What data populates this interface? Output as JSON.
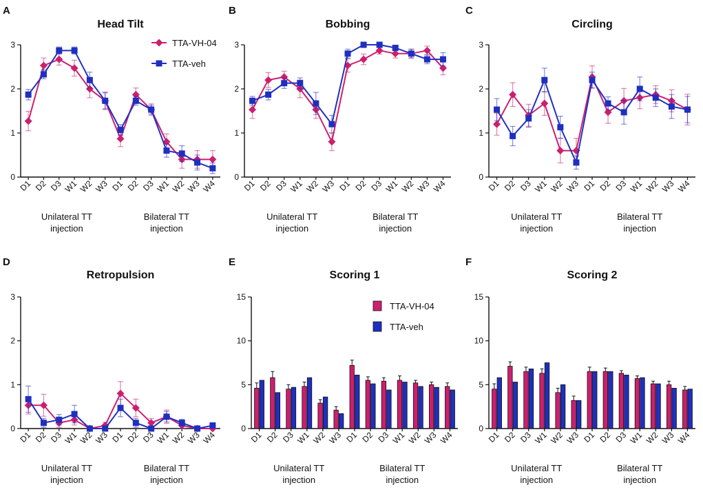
{
  "colors": {
    "vh": "#cc1f6e",
    "veh": "#1f2fbf",
    "axis": "#111111"
  },
  "chart_data": [
    {
      "panel": "A",
      "type": "line",
      "title": "Head Tilt",
      "categories": [
        "D1",
        "D2",
        "D3",
        "W1",
        "W2",
        "W3",
        "D1",
        "D2",
        "D3",
        "W1",
        "W2",
        "W3",
        "W4"
      ],
      "groups": [
        {
          "label": [
            "Unilateral TT",
            "injection"
          ],
          "from": 0,
          "to": 5
        },
        {
          "label": [
            "Bilateral TT",
            "injection"
          ],
          "from": 6,
          "to": 12
        }
      ],
      "ylim": [
        0,
        3
      ],
      "yticks": [
        0,
        1,
        2,
        3
      ],
      "legend": {
        "position": "top-right",
        "marker": "line"
      },
      "series": [
        {
          "name": "TTA-VH-04",
          "color": "#cc1f6e",
          "marker": "diamond",
          "values": [
            1.27,
            2.53,
            2.67,
            2.47,
            2.0,
            1.73,
            0.87,
            1.87,
            1.53,
            0.8,
            0.4,
            0.4,
            0.4
          ],
          "errors": [
            0.22,
            0.17,
            0.13,
            0.18,
            0.2,
            0.2,
            0.18,
            0.15,
            0.13,
            0.18,
            0.2,
            0.2,
            0.2
          ]
        },
        {
          "name": "TTA-veh",
          "color": "#1f2fbf",
          "marker": "square",
          "values": [
            1.87,
            2.33,
            2.87,
            2.87,
            2.2,
            1.73,
            1.07,
            1.73,
            1.53,
            0.6,
            0.53,
            0.33,
            0.2
          ],
          "errors": [
            0.12,
            0.1,
            0.08,
            0.08,
            0.18,
            0.18,
            0.12,
            0.1,
            0.1,
            0.15,
            0.18,
            0.17,
            0.12
          ]
        }
      ]
    },
    {
      "panel": "B",
      "type": "line",
      "title": "Bobbing",
      "categories": [
        "D1",
        "D2",
        "D3",
        "W1",
        "W2",
        "W3",
        "D1",
        "D2",
        "D3",
        "W1",
        "W2",
        "W3",
        "W4"
      ],
      "groups": [
        {
          "label": [
            "Unilateral TT",
            "injection"
          ],
          "from": 0,
          "to": 5
        },
        {
          "label": [
            "Bilateral TT",
            "injection"
          ],
          "from": 6,
          "to": 12
        }
      ],
      "ylim": [
        0,
        3
      ],
      "yticks": [
        0,
        1,
        2,
        3
      ],
      "series": [
        {
          "name": "TTA-VH-04",
          "color": "#cc1f6e",
          "marker": "diamond",
          "values": [
            1.53,
            2.2,
            2.27,
            2.0,
            1.53,
            0.8,
            2.53,
            2.67,
            2.87,
            2.8,
            2.8,
            2.87,
            2.47
          ],
          "errors": [
            0.2,
            0.17,
            0.13,
            0.2,
            0.2,
            0.2,
            0.15,
            0.12,
            0.08,
            0.1,
            0.1,
            0.1,
            0.15
          ]
        },
        {
          "name": "TTA-veh",
          "color": "#1f2fbf",
          "marker": "square",
          "values": [
            1.73,
            1.87,
            2.13,
            2.13,
            1.67,
            1.2,
            2.8,
            3.0,
            3.0,
            2.93,
            2.8,
            2.67,
            2.67
          ],
          "errors": [
            0.1,
            0.12,
            0.12,
            0.12,
            0.25,
            0.2,
            0.1,
            0.0,
            0.0,
            0.06,
            0.1,
            0.1,
            0.15
          ]
        }
      ]
    },
    {
      "panel": "C",
      "type": "line",
      "title": "Circling",
      "categories": [
        "D1",
        "D2",
        "D3",
        "W1",
        "W2",
        "W3",
        "D1",
        "D2",
        "D3",
        "W1",
        "W2",
        "W3",
        "W4"
      ],
      "groups": [
        {
          "label": [
            "Unilateral TT",
            "injection"
          ],
          "from": 0,
          "to": 5
        },
        {
          "label": [
            "Bilateral TT",
            "injection"
          ],
          "from": 6,
          "to": 12
        }
      ],
      "ylim": [
        0,
        3
      ],
      "yticks": [
        0,
        1,
        2,
        3
      ],
      "series": [
        {
          "name": "TTA-VH-04",
          "color": "#cc1f6e",
          "marker": "diamond",
          "values": [
            1.2,
            1.87,
            1.4,
            1.67,
            0.6,
            0.6,
            2.27,
            1.47,
            1.73,
            1.8,
            1.87,
            1.73,
            1.53
          ],
          "errors": [
            0.25,
            0.27,
            0.25,
            0.27,
            0.28,
            0.28,
            0.25,
            0.25,
            0.28,
            0.25,
            0.2,
            0.25,
            0.35
          ]
        },
        {
          "name": "TTA-veh",
          "color": "#1f2fbf",
          "marker": "square",
          "values": [
            1.53,
            0.93,
            1.33,
            2.2,
            1.13,
            0.33,
            2.2,
            1.67,
            1.47,
            2.0,
            1.8,
            1.6,
            1.53
          ],
          "errors": [
            0.25,
            0.22,
            0.2,
            0.27,
            0.25,
            0.15,
            0.18,
            0.15,
            0.27,
            0.27,
            0.2,
            0.27,
            0.3
          ]
        }
      ]
    },
    {
      "panel": "D",
      "type": "line",
      "title": "Retropulsion",
      "categories": [
        "D1",
        "D2",
        "D3",
        "W1",
        "W2",
        "W3",
        "D1",
        "D2",
        "D3",
        "W1",
        "W2",
        "W3",
        "W4"
      ],
      "groups": [
        {
          "label": [
            "Unilateral TT",
            "injection"
          ],
          "from": 0,
          "to": 5
        },
        {
          "label": [
            "Bilateral TT",
            "injection"
          ],
          "from": 6,
          "to": 12
        }
      ],
      "ylim": [
        0,
        3
      ],
      "yticks": [
        0,
        1,
        2,
        3
      ],
      "series": [
        {
          "name": "TTA-VH-04",
          "color": "#cc1f6e",
          "marker": "diamond",
          "values": [
            0.53,
            0.53,
            0.13,
            0.2,
            0.0,
            0.07,
            0.8,
            0.47,
            0.13,
            0.27,
            0.07,
            0.0,
            0.0
          ],
          "errors": [
            0.2,
            0.25,
            0.1,
            0.12,
            0.0,
            0.07,
            0.27,
            0.2,
            0.1,
            0.15,
            0.07,
            0.0,
            0.0
          ]
        },
        {
          "name": "TTA-veh",
          "color": "#1f2fbf",
          "marker": "square",
          "values": [
            0.67,
            0.13,
            0.2,
            0.33,
            0.0,
            0.0,
            0.47,
            0.13,
            0.0,
            0.27,
            0.13,
            0.0,
            0.07
          ],
          "errors": [
            0.3,
            0.1,
            0.12,
            0.2,
            0.0,
            0.0,
            0.2,
            0.1,
            0.0,
            0.12,
            0.08,
            0.0,
            0.05
          ]
        }
      ]
    },
    {
      "panel": "E",
      "type": "bar",
      "title": "Scoring 1",
      "categories": [
        "D1",
        "D2",
        "D3",
        "W1",
        "W2",
        "W3",
        "D1",
        "D2",
        "D3",
        "W1",
        "W2",
        "W3",
        "W4"
      ],
      "groups": [
        {
          "label": [
            "Unilateral TT",
            "injection"
          ],
          "from": 0,
          "to": 5
        },
        {
          "label": [
            "Bilateral TT",
            "injection"
          ],
          "from": 6,
          "to": 12
        }
      ],
      "ylim": [
        0,
        15
      ],
      "yticks": [
        0,
        5,
        10,
        15
      ],
      "legend": {
        "position": "top-right",
        "marker": "bar"
      },
      "series": [
        {
          "name": "TTA-VH-04",
          "color": "#cc1f6e",
          "values": [
            4.6,
            5.8,
            4.5,
            4.8,
            2.9,
            2.1,
            7.2,
            5.5,
            5.4,
            5.5,
            5.2,
            5.0,
            4.8
          ],
          "errors": [
            0.6,
            0.7,
            0.5,
            0.5,
            0.4,
            0.4,
            0.6,
            0.4,
            0.4,
            0.5,
            0.3,
            0.3,
            0.4
          ]
        },
        {
          "name": "TTA-veh",
          "color": "#1f2fbf",
          "values": [
            5.5,
            4.1,
            4.7,
            5.8,
            3.6,
            1.7,
            6.1,
            5.1,
            4.4,
            5.3,
            4.8,
            4.7,
            4.4
          ]
        }
      ]
    },
    {
      "panel": "F",
      "type": "bar",
      "title": "Scoring 2",
      "categories": [
        "D1",
        "D2",
        "D3",
        "W1",
        "W2",
        "W3",
        "D1",
        "D2",
        "D3",
        "W1",
        "W2",
        "W3",
        "W4"
      ],
      "groups": [
        {
          "label": [
            "Unilateral TT",
            "injection"
          ],
          "from": 0,
          "to": 5
        },
        {
          "label": [
            "Bilateral TT",
            "injection"
          ],
          "from": 6,
          "to": 12
        }
      ],
      "ylim": [
        0,
        15
      ],
      "yticks": [
        0,
        5,
        10,
        15
      ],
      "series": [
        {
          "name": "TTA-VH-04",
          "color": "#cc1f6e",
          "values": [
            4.5,
            7.1,
            6.5,
            6.3,
            4.1,
            3.2,
            6.5,
            6.5,
            6.3,
            5.7,
            5.1,
            5.0,
            4.4
          ],
          "errors": [
            0.6,
            0.5,
            0.5,
            0.5,
            0.5,
            0.5,
            0.5,
            0.4,
            0.3,
            0.3,
            0.3,
            0.4,
            0.4
          ]
        },
        {
          "name": "TTA-veh",
          "color": "#1f2fbf",
          "values": [
            5.8,
            5.3,
            6.8,
            7.5,
            5.0,
            3.2,
            6.5,
            6.5,
            6.1,
            5.8,
            5.1,
            4.6,
            4.5
          ]
        }
      ]
    }
  ]
}
